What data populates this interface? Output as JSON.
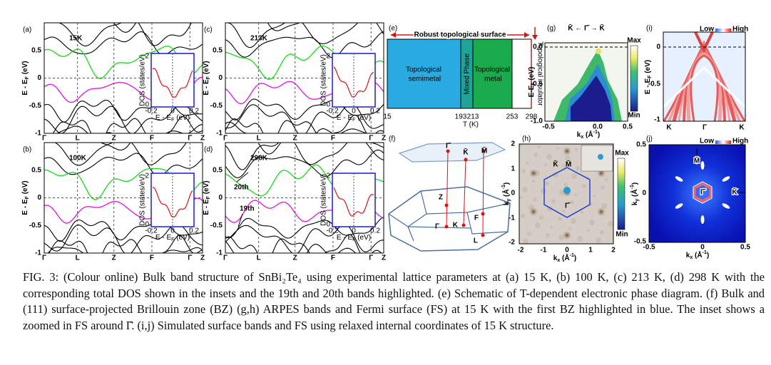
{
  "band_axis": {
    "yticks": [
      "0.5",
      "0",
      "-0.5",
      "-1"
    ],
    "xticks": [
      "Γ",
      "L",
      "Z",
      "F",
      "Γ",
      "Z"
    ],
    "ylabel": [
      "E - E",
      "F",
      " (eV)"
    ]
  },
  "dos_inset": {
    "ylabel": "DOS (states/eV)",
    "yticks": [
      "2",
      "0"
    ],
    "xticks": [
      "-0.2",
      "0",
      "0.2"
    ],
    "xlabel": [
      "E - E",
      "F",
      " (eV)"
    ]
  },
  "panels": {
    "a": {
      "label": "(a)",
      "temperature": "15K"
    },
    "b": {
      "label": "(b)",
      "temperature": "100K"
    },
    "c": {
      "label": "(c)",
      "temperature": "213K"
    },
    "d": {
      "label": "(d)",
      "temperature": "298K",
      "band_labels": [
        "20th",
        "19th"
      ]
    },
    "e": {
      "label": "(e)",
      "surface": "Robust topological surface",
      "phases": [
        "Topological semimetal",
        "Mixed Phase",
        "Topological metal"
      ],
      "insulator": "Topological insulator",
      "xticks": [
        "15",
        "193",
        "213",
        "253",
        "298"
      ],
      "xlabel": "T (K)"
    },
    "f": {
      "label": "(f)",
      "points": [
        "Γ̄",
        "K̄",
        "M̄",
        "Z",
        "Γ",
        "K",
        "F",
        "L"
      ]
    },
    "g": {
      "label": "(g)",
      "header": "K̄ ←  Γ̄  → K̄",
      "yticks": [
        "0.0",
        "-0.5",
        "-1.0"
      ],
      "xticks": [
        "-0.5",
        "0.0",
        "0.5"
      ],
      "xlabel": [
        "k",
        "x",
        " (Å",
        "-1",
        ")"
      ],
      "ylabel": [
        "E-E",
        "F",
        " (eV)"
      ],
      "colorbar": [
        "Max",
        "Min"
      ]
    },
    "h": {
      "label": "(h)",
      "yticks": [
        "2",
        "1",
        "0",
        "-1",
        "-2"
      ],
      "xticks": [
        "-2",
        "-1",
        "0",
        "1",
        "2"
      ],
      "points": [
        "K̄",
        "M̄",
        "Γ̄"
      ],
      "xlabel": [
        "k",
        "x",
        " (Å",
        "-1",
        ")"
      ],
      "ylabel": [
        "k",
        "y",
        " (Å",
        "-1",
        ")"
      ],
      "colorbar": [
        "Max",
        "Min"
      ]
    },
    "i": {
      "label": "(i)",
      "colorbar": [
        "Low",
        "High"
      ],
      "yticks": [
        "0",
        "-0.5",
        "-1"
      ],
      "xticks": [
        "K",
        "Γ",
        "K"
      ],
      "ylabel": [
        "E - E",
        "F",
        " (eV)"
      ]
    },
    "j": {
      "label": "(j)",
      "colorbar": [
        "Low",
        "High"
      ],
      "yticks": [
        "0.5",
        "0",
        "-0.5"
      ],
      "xticks": [
        "-0.5",
        "0",
        "0.5"
      ],
      "points": [
        "M̄",
        "Γ̄",
        "K̄"
      ],
      "xlabel": [
        "k",
        "x",
        " (Å",
        "-1",
        ")"
      ],
      "ylabel": [
        "k",
        "y",
        " (Å",
        "-1",
        ")"
      ]
    }
  },
  "caption": {
    "label": "FIG. 3:",
    "text": "(Colour online) Bulk band structure of SnBi₂Te₄ using experimental lattice parameters at (a) 15 K, (b) 100 K, (c) 213 K, (d) 298 K with the corresponding total DOS shown in the insets and the 19th and 20th bands highlighted. (e) Schematic of T-dependent electronic phase diagram. (f) Bulk and (111) surface-projected Brillouin zone (BZ) (g,h) ARPES bands and Fermi surface (FS) at 15 K with the first BZ highlighted in blue. The inset shows a zoomed in FS around Γ̄. (i,j) Simulated surface bands and FS using relaxed internal coordinates of 15 K structure."
  }
}
